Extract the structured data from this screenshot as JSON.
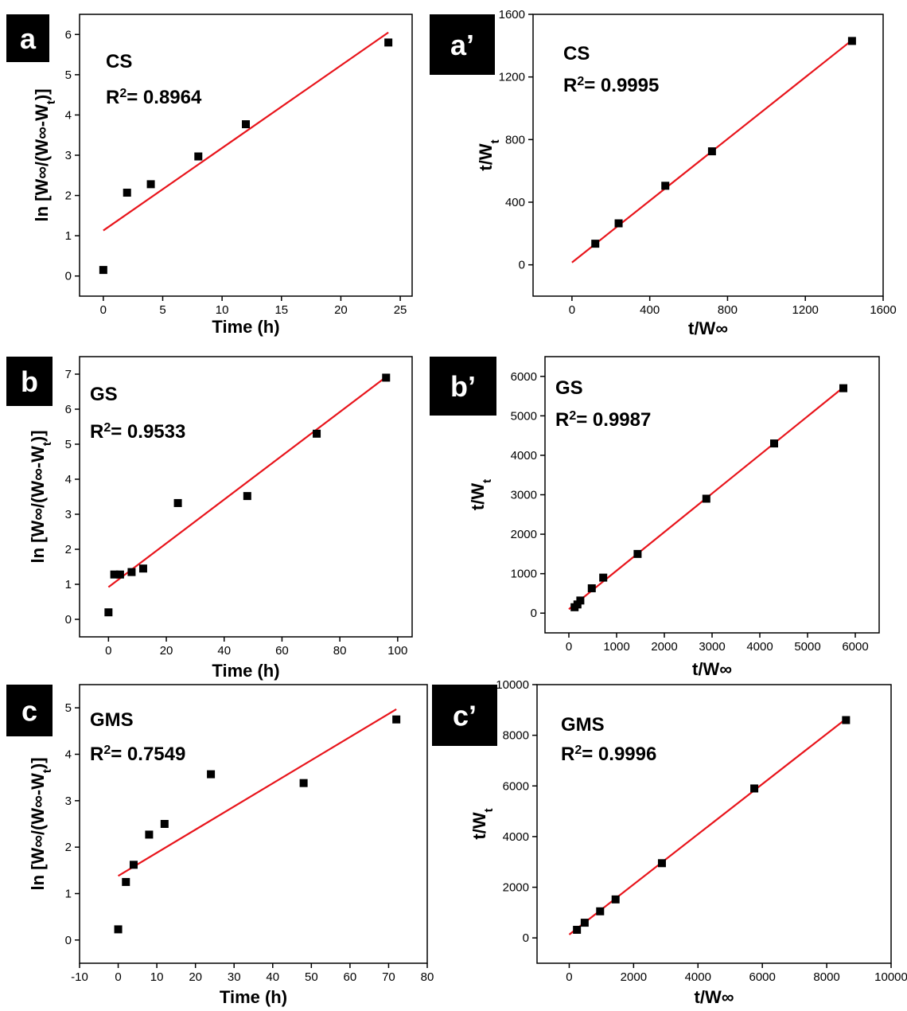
{
  "chart_data": [
    {
      "type": "scatter",
      "panel_label": "a",
      "annotation": "CS",
      "r2_label": "R",
      "r2_sup": "2",
      "r2_value": "= 0.8964",
      "xlabel": "Time (h)",
      "ylabel": "ln [W∞/(W∞-W",
      "ylabel_sub": "t",
      "ylabel_end": ")]",
      "xlim": [
        -2,
        26
      ],
      "ylim": [
        -0.5,
        6.5
      ],
      "xticks": [
        0,
        5,
        10,
        15,
        20,
        25
      ],
      "yticks": [
        0,
        1,
        2,
        3,
        4,
        5,
        6
      ],
      "points": [
        [
          0,
          0.15
        ],
        [
          2,
          2.07
        ],
        [
          4,
          2.28
        ],
        [
          8,
          2.97
        ],
        [
          12,
          3.77
        ],
        [
          24,
          5.8
        ]
      ],
      "fit_line": [
        [
          0,
          1.13
        ],
        [
          24,
          6.05
        ]
      ],
      "colors": {
        "points": "#000000",
        "fit": "#e8141b"
      }
    },
    {
      "type": "scatter",
      "panel_label": "a’",
      "annotation": "CS",
      "r2_label": "R",
      "r2_sup": "2",
      "r2_value": "= 0.9995",
      "xlabel": "t/W∞",
      "ylabel": "t/W",
      "ylabel_sub": "t",
      "ylabel_end": "",
      "xlim": [
        -200,
        1600
      ],
      "ylim": [
        -200,
        1600
      ],
      "xticks": [
        0,
        400,
        800,
        1200,
        1600
      ],
      "yticks": [
        0,
        400,
        800,
        1200,
        1600
      ],
      "points": [
        [
          120,
          135
        ],
        [
          240,
          265
        ],
        [
          480,
          505
        ],
        [
          720,
          725
        ],
        [
          1440,
          1430
        ]
      ],
      "fit_line": [
        [
          0,
          15
        ],
        [
          1440,
          1435
        ]
      ],
      "colors": {
        "points": "#000000",
        "fit": "#e8141b"
      }
    },
    {
      "type": "scatter",
      "panel_label": "b",
      "annotation": "GS",
      "r2_label": "R",
      "r2_sup": "2",
      "r2_value": "= 0.9533",
      "xlabel": "Time (h)",
      "ylabel": "ln [W∞/(W∞-W",
      "ylabel_sub": "t",
      "ylabel_end": ")]",
      "xlim": [
        -10,
        105
      ],
      "ylim": [
        -0.5,
        7.5
      ],
      "xticks": [
        0,
        20,
        40,
        60,
        80,
        100
      ],
      "yticks": [
        0,
        1,
        2,
        3,
        4,
        5,
        6,
        7
      ],
      "points": [
        [
          0,
          0.2
        ],
        [
          2,
          1.28
        ],
        [
          4,
          1.28
        ],
        [
          8,
          1.35
        ],
        [
          12,
          1.45
        ],
        [
          24,
          3.32
        ],
        [
          48,
          3.52
        ],
        [
          72,
          5.3
        ],
        [
          96,
          6.9
        ]
      ],
      "fit_line": [
        [
          0,
          0.92
        ],
        [
          96,
          6.92
        ]
      ],
      "colors": {
        "points": "#000000",
        "fit": "#e8141b"
      }
    },
    {
      "type": "scatter",
      "panel_label": "b’",
      "annotation": "GS",
      "r2_label": "R",
      "r2_sup": "2",
      "r2_value": "= 0.9987",
      "xlabel": "t/W∞",
      "ylabel": "t/W",
      "ylabel_sub": "t",
      "ylabel_end": "",
      "xlim": [
        -500,
        6500
      ],
      "ylim": [
        -500,
        6500
      ],
      "xticks": [
        0,
        1000,
        2000,
        3000,
        4000,
        5000,
        6000
      ],
      "yticks": [
        0,
        1000,
        2000,
        3000,
        4000,
        5000,
        6000
      ],
      "points": [
        [
          120,
          150
        ],
        [
          180,
          220
        ],
        [
          240,
          320
        ],
        [
          480,
          630
        ],
        [
          720,
          900
        ],
        [
          1440,
          1500
        ],
        [
          2880,
          2900
        ],
        [
          4300,
          4300
        ],
        [
          5750,
          5700
        ]
      ],
      "fit_line": [
        [
          0,
          100
        ],
        [
          5750,
          5720
        ]
      ],
      "colors": {
        "points": "#000000",
        "fit": "#e8141b"
      }
    },
    {
      "type": "scatter",
      "panel_label": "c",
      "annotation": "GMS",
      "r2_label": "R",
      "r2_sup": "2",
      "r2_value": "= 0.7549",
      "xlabel": "Time (h)",
      "ylabel": "ln [W∞/(W∞-W",
      "ylabel_sub": "t",
      "ylabel_end": ")]",
      "xlim": [
        -10,
        80
      ],
      "ylim": [
        -0.5,
        5.5
      ],
      "xticks": [
        -10,
        0,
        10,
        20,
        30,
        40,
        50,
        60,
        70,
        80
      ],
      "yticks": [
        0,
        1,
        2,
        3,
        4,
        5
      ],
      "points": [
        [
          0,
          0.23
        ],
        [
          2,
          1.25
        ],
        [
          4,
          1.62
        ],
        [
          8,
          2.27
        ],
        [
          12,
          2.5
        ],
        [
          24,
          3.57
        ],
        [
          48,
          3.38
        ],
        [
          72,
          4.75
        ]
      ],
      "fit_line": [
        [
          0,
          1.38
        ],
        [
          72,
          4.97
        ]
      ],
      "colors": {
        "points": "#000000",
        "fit": "#e8141b"
      }
    },
    {
      "type": "scatter",
      "panel_label": "c’",
      "annotation": "GMS",
      "r2_label": "R",
      "r2_sup": "2",
      "r2_value": "= 0.9996",
      "xlabel": "t/W∞",
      "ylabel": "t/W",
      "ylabel_sub": "t",
      "ylabel_end": "",
      "xlim": [
        -1000,
        10000
      ],
      "ylim": [
        -1000,
        10000
      ],
      "xticks": [
        0,
        2000,
        4000,
        6000,
        8000,
        10000
      ],
      "yticks": [
        0,
        2000,
        4000,
        6000,
        8000,
        10000
      ],
      "points": [
        [
          240,
          320
        ],
        [
          480,
          600
        ],
        [
          960,
          1050
        ],
        [
          1440,
          1520
        ],
        [
          2880,
          2950
        ],
        [
          5750,
          5900
        ],
        [
          8600,
          8600
        ]
      ],
      "fit_line": [
        [
          0,
          130
        ],
        [
          8600,
          8650
        ]
      ],
      "colors": {
        "points": "#000000",
        "fit": "#e8141b"
      }
    }
  ]
}
